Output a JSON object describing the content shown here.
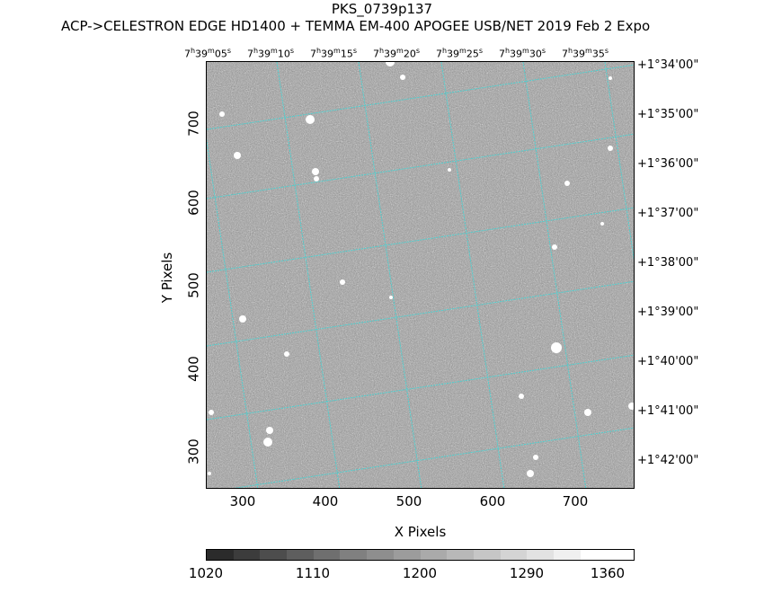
{
  "title": "PKS_0739p137",
  "subtitle": "ACP->CELESTRON EDGE HD1400 + TEMMA EM-400 APOGEE USB/NET   2019 Feb  2    Expo",
  "xlabel": "X Pixels",
  "ylabel": "Y Pixels",
  "ra_ticks": [
    {
      "h": "7",
      "m": "39",
      "s": "05"
    },
    {
      "h": "7",
      "m": "39",
      "s": "10"
    },
    {
      "h": "7",
      "m": "39",
      "s": "15"
    },
    {
      "h": "7",
      "m": "39",
      "s": "20"
    },
    {
      "h": "7",
      "m": "39",
      "s": "25"
    },
    {
      "h": "7",
      "m": "39",
      "s": "30"
    },
    {
      "h": "7",
      "m": "39",
      "s": "35"
    }
  ],
  "dec_ticks": [
    "+1°34'00\"",
    "+1°35'00\"",
    "+1°36'00\"",
    "+1°37'00\"",
    "+1°38'00\"",
    "+1°39'00\"",
    "+1°40'00\"",
    "+1°41'00\"",
    "+1°42'00\""
  ],
  "x_ticks": [
    "300",
    "400",
    "500",
    "600",
    "700"
  ],
  "y_ticks": [
    "700",
    "600",
    "500",
    "400",
    "300"
  ],
  "colorbar_ticks": [
    "1020",
    "1110",
    "1200",
    "1290",
    "1360"
  ],
  "grid_color": "#4fd0d0",
  "colorbar_colors": [
    "#2b2b2b",
    "#3c3c3c",
    "#4d4d4d",
    "#5e5e5e",
    "#6f6f6f",
    "#808080",
    "#8e8e8e",
    "#9c9c9c",
    "#aaaaaa",
    "#b8b8b8",
    "#c6c6c6",
    "#d4d4d4",
    "#e2e2e2",
    "#f0f0f0",
    "#ffffff",
    "#ffffff"
  ],
  "chart_data": {
    "type": "heatmap",
    "title": "PKS_0739p137",
    "xlabel": "X Pixels",
    "ylabel": "Y Pixels",
    "xlim": [
      258,
      767
    ],
    "ylim": [
      258,
      767
    ],
    "x_tick_values": [
      300,
      400,
      500,
      600,
      700
    ],
    "y_tick_values": [
      300,
      400,
      500,
      600,
      700
    ],
    "colorbar_range": [
      1020,
      1360
    ],
    "grid": true
  }
}
